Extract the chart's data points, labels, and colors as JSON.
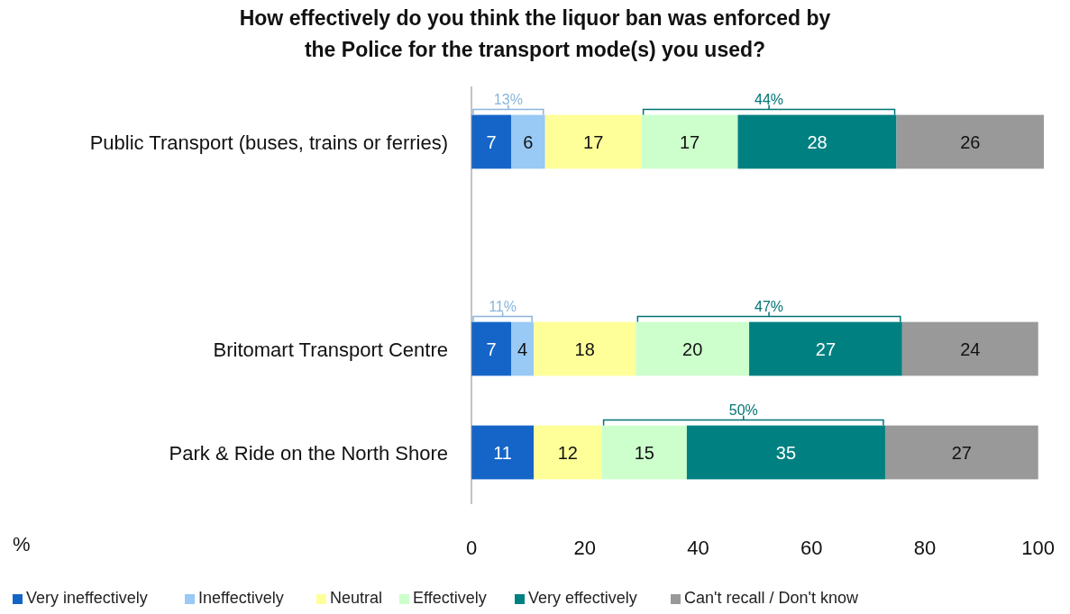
{
  "chart_data": {
    "type": "bar",
    "orientation": "horizontal",
    "stacked": true,
    "title": "How effectively do you think the liquor ban was enforced by the Police for the transport mode(s) you used?",
    "xlabel": "%",
    "categories": [
      "Public Transport (buses, trains or ferries)",
      null,
      "Britomart Transport Centre",
      "Park & Ride on the North Shore"
    ],
    "series": [
      {
        "name": "Very ineffectively",
        "color": "#1565c8",
        "values": [
          7,
          null,
          7,
          11
        ]
      },
      {
        "name": "Ineffectively",
        "color": "#99c9f5",
        "values": [
          6,
          null,
          4,
          null
        ]
      },
      {
        "name": "Neutral",
        "color": "#ffff99",
        "values": [
          17,
          null,
          18,
          12
        ]
      },
      {
        "name": "Effectively",
        "color": "#ccffcc",
        "values": [
          17,
          null,
          20,
          15
        ]
      },
      {
        "name": "Very effectively",
        "color": "#008080",
        "values": [
          28,
          null,
          27,
          35
        ]
      },
      {
        "name": "Can't recall / Don't know",
        "color": "#999999",
        "values": [
          26,
          null,
          24,
          27
        ]
      }
    ],
    "xlim": [
      0,
      101
    ],
    "xticks": [
      0,
      20,
      40,
      60,
      80,
      100
    ],
    "data_labels": true,
    "legend": "bottom",
    "grid": false,
    "annotations": [
      "13%",
      "44%",
      "11%",
      "47%",
      "50%"
    ]
  }
}
